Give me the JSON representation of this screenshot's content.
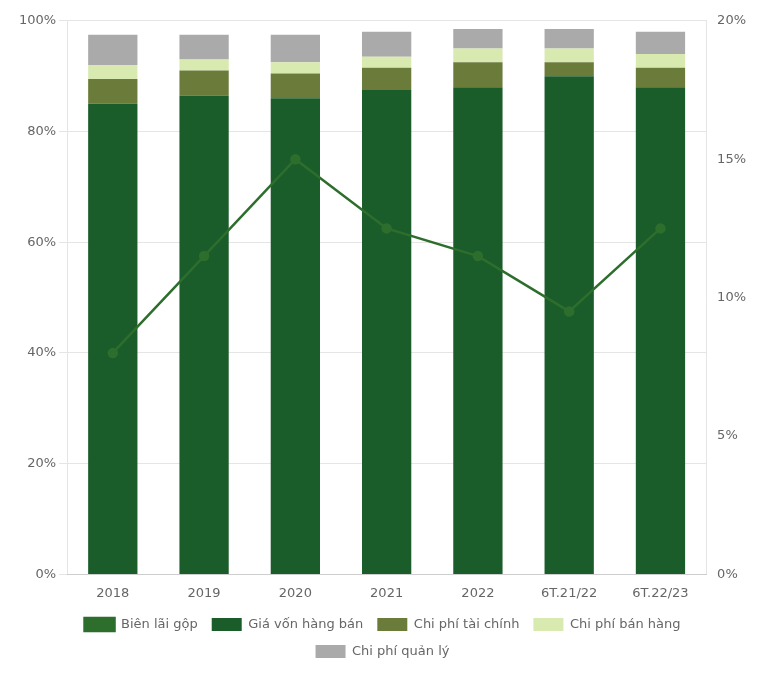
{
  "chart_data": {
    "type": "bar",
    "stacked": true,
    "categories": [
      "2018",
      "2019",
      "2020",
      "2021",
      "2022",
      "6T.21/22",
      "6T.22/23"
    ],
    "series": [
      {
        "name": "Giá vốn hàng bán",
        "color": "#1a5c2a",
        "values": [
          85.0,
          86.5,
          86.0,
          87.5,
          88.0,
          90.0,
          88.0
        ]
      },
      {
        "name": "Chi phí tài chính",
        "color": "#6b7c3a",
        "values": [
          4.5,
          4.5,
          4.5,
          4.0,
          4.5,
          2.5,
          3.5
        ]
      },
      {
        "name": "Chi phí bán hàng",
        "color": "#d8eab0",
        "values": [
          2.5,
          2.0,
          2.0,
          2.0,
          2.5,
          2.5,
          2.5
        ]
      },
      {
        "name": "Chi phí quản lý",
        "color": "#aaaaaa",
        "values": [
          5.5,
          4.5,
          5.0,
          4.5,
          3.5,
          3.5,
          4.0
        ]
      },
      {
        "name": "Biên lãi gộp",
        "type": "line",
        "axis": "y2",
        "color": "#2d6e2d",
        "marker": "circle",
        "line_style": "solid",
        "values": [
          8.0,
          11.5,
          15.0,
          12.5,
          11.5,
          9.5,
          12.5
        ]
      }
    ],
    "ylim": [
      0,
      100
    ],
    "yticks": [
      {
        "value": 0,
        "label": "0%"
      },
      {
        "value": 20,
        "label": "20%"
      },
      {
        "value": 40,
        "label": "40%"
      },
      {
        "value": 60,
        "label": "60%"
      },
      {
        "value": 80,
        "label": "80%"
      },
      {
        "value": 100,
        "label": "100%"
      }
    ],
    "y2lim": [
      0,
      20
    ],
    "y2ticks": [
      {
        "value": 0,
        "label": "0%"
      },
      {
        "value": 5,
        "label": "5%"
      },
      {
        "value": 10,
        "label": "10%"
      },
      {
        "value": 15,
        "label": "15%"
      },
      {
        "value": 20,
        "label": "20%"
      }
    ],
    "grid": true,
    "legend": "bottom"
  }
}
